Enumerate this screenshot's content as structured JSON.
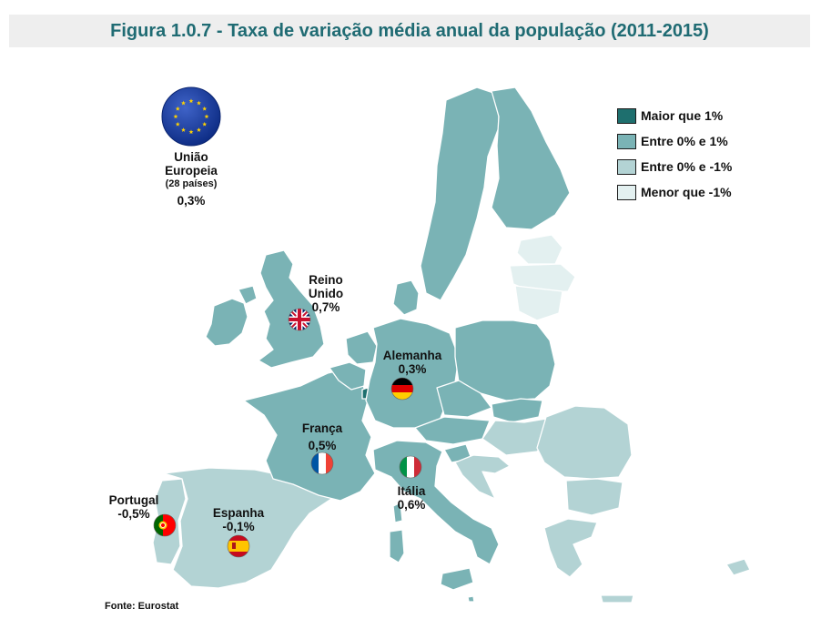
{
  "title": "Figura 1.0.7 - Taxa de variação média anual da população (2011-2015)",
  "source": "Fonte: Eurostat",
  "colors": {
    "above_1": "#1e6f6e",
    "between_0_1": "#7ab3b5",
    "between_0_m1": "#b3d3d4",
    "below_m1": "#e3f0f0",
    "non_eu": "#ffffff",
    "borders": "#ffffff",
    "title_color": "#1f6b73"
  },
  "legend": [
    {
      "label": "Maior que 1%",
      "color": "#1e6f6e"
    },
    {
      "label": "Entre 0% e 1%",
      "color": "#7ab3b5"
    },
    {
      "label": "Entre 0% e -1%",
      "color": "#b3d3d4"
    },
    {
      "label": "Menor que -1%",
      "color": "#e3f0f0"
    }
  ],
  "eu": {
    "line1": "União",
    "line2": "Europeia",
    "line3": "(28 países)",
    "value": "0,3%",
    "icon": "eu-flag-icon"
  },
  "countries": [
    {
      "name": "Reino Unido",
      "line1": "Reino",
      "line2": "Unido",
      "value": "0,7%",
      "icon": "uk-flag-icon"
    },
    {
      "name": "Alemanha",
      "value": "0,3%",
      "icon": "germany-flag-icon"
    },
    {
      "name": "França",
      "value": "0,5%",
      "icon": "france-flag-icon"
    },
    {
      "name": "Itália",
      "value": "0,6%",
      "icon": "italy-flag-icon"
    },
    {
      "name": "Portugal",
      "value": "-0,5%",
      "icon": "portugal-flag-icon"
    },
    {
      "name": "Espanha",
      "value": "-0,1%",
      "icon": "spain-flag-icon"
    }
  ]
}
